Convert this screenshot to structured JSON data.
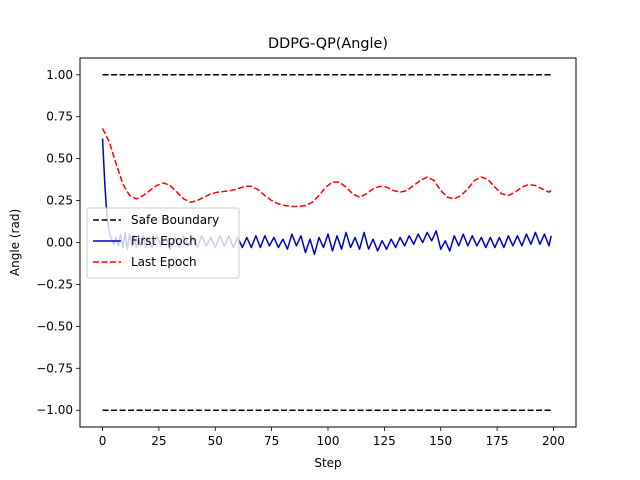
{
  "chart_data": {
    "type": "line",
    "title": "DDPG-QP(Angle)",
    "xlabel": "Step",
    "ylabel": "Angle (rad)",
    "xlim": [
      -10,
      210
    ],
    "ylim": [
      -1.1,
      1.1
    ],
    "xticks": [
      0,
      25,
      50,
      75,
      100,
      125,
      150,
      175,
      200
    ],
    "yticks": [
      -1.0,
      -0.75,
      -0.5,
      -0.25,
      0.0,
      0.25,
      0.5,
      0.75,
      1.0
    ],
    "xtick_labels": [
      "0",
      "25",
      "50",
      "75",
      "100",
      "125",
      "150",
      "175",
      "200"
    ],
    "ytick_labels": [
      "−1.00",
      "−0.75",
      "−0.50",
      "−0.25",
      "0.00",
      "0.25",
      "0.50",
      "0.75",
      "1.00"
    ],
    "legend_position": "center-left",
    "series": [
      {
        "name": "Safe Boundary",
        "color": "#000000",
        "style": "dashed",
        "segments": [
          {
            "x": [
              0,
              199
            ],
            "y": [
              1.0,
              1.0
            ]
          },
          {
            "x": [
              0,
              199
            ],
            "y": [
              -1.0,
              -1.0
            ]
          }
        ]
      },
      {
        "name": "First Epoch",
        "color": "#0000cc",
        "style": "solid",
        "x": [
          0,
          1,
          2,
          3,
          4,
          5,
          6,
          7,
          8,
          9,
          10,
          11,
          12,
          13,
          14,
          15,
          16,
          17,
          18,
          19,
          20,
          22,
          24,
          26,
          28,
          30,
          32,
          34,
          36,
          38,
          40,
          42,
          44,
          46,
          48,
          50,
          52,
          54,
          56,
          58,
          60,
          62,
          64,
          66,
          68,
          70,
          72,
          74,
          76,
          78,
          80,
          82,
          84,
          86,
          88,
          90,
          92,
          94,
          96,
          98,
          100,
          102,
          104,
          106,
          108,
          110,
          112,
          114,
          116,
          118,
          120,
          122,
          124,
          126,
          128,
          130,
          132,
          134,
          136,
          138,
          140,
          142,
          144,
          146,
          148,
          150,
          152,
          154,
          156,
          158,
          160,
          162,
          164,
          166,
          168,
          170,
          172,
          174,
          176,
          178,
          180,
          182,
          184,
          186,
          188,
          190,
          192,
          194,
          196,
          198,
          199
        ],
        "y": [
          0.62,
          0.35,
          0.15,
          0.06,
          0.02,
          -0.01,
          0.03,
          -0.02,
          0.05,
          -0.03,
          0.06,
          -0.04,
          0.05,
          -0.02,
          0.04,
          -0.03,
          0.03,
          -0.02,
          0.04,
          -0.03,
          0.03,
          -0.03,
          0.04,
          -0.02,
          0.03,
          -0.04,
          0.03,
          -0.03,
          0.04,
          -0.02,
          0.03,
          -0.03,
          0.04,
          -0.02,
          0.03,
          -0.03,
          0.04,
          -0.02,
          0.04,
          -0.03,
          0.03,
          -0.03,
          0.03,
          -0.03,
          0.04,
          -0.03,
          0.04,
          -0.02,
          0.03,
          -0.03,
          0.02,
          -0.04,
          0.05,
          -0.02,
          0.04,
          -0.06,
          0.02,
          -0.07,
          0.03,
          -0.03,
          0.05,
          -0.05,
          0.04,
          -0.04,
          0.06,
          -0.03,
          0.03,
          -0.04,
          0.06,
          -0.04,
          0.02,
          -0.05,
          0.01,
          -0.04,
          0.02,
          -0.03,
          0.03,
          -0.02,
          0.04,
          -0.01,
          0.05,
          0.0,
          0.06,
          0.01,
          0.07,
          -0.04,
          0.01,
          -0.05,
          0.04,
          -0.02,
          0.05,
          -0.02,
          0.04,
          -0.02,
          0.03,
          -0.03,
          0.03,
          -0.03,
          0.03,
          -0.03,
          0.04,
          -0.02,
          0.04,
          -0.02,
          0.05,
          -0.01,
          0.06,
          -0.01,
          0.05,
          -0.02,
          0.04
        ]
      },
      {
        "name": "Last Epoch",
        "color": "#ff0000",
        "style": "dashed",
        "x": [
          0,
          3,
          6,
          9,
          12,
          15,
          18,
          21,
          24,
          27,
          30,
          33,
          36,
          39,
          42,
          45,
          48,
          51,
          54,
          57,
          60,
          63,
          66,
          69,
          72,
          75,
          78,
          81,
          84,
          87,
          90,
          93,
          96,
          99,
          102,
          105,
          108,
          111,
          114,
          117,
          120,
          123,
          126,
          129,
          132,
          135,
          138,
          141,
          144,
          147,
          150,
          153,
          156,
          159,
          162,
          165,
          168,
          171,
          174,
          177,
          180,
          183,
          186,
          189,
          192,
          195,
          198,
          199
        ],
        "y": [
          0.68,
          0.6,
          0.47,
          0.35,
          0.28,
          0.26,
          0.28,
          0.31,
          0.34,
          0.355,
          0.34,
          0.3,
          0.26,
          0.24,
          0.25,
          0.27,
          0.29,
          0.3,
          0.305,
          0.31,
          0.32,
          0.335,
          0.335,
          0.315,
          0.28,
          0.25,
          0.23,
          0.22,
          0.215,
          0.215,
          0.22,
          0.24,
          0.28,
          0.33,
          0.36,
          0.36,
          0.33,
          0.29,
          0.27,
          0.29,
          0.32,
          0.335,
          0.33,
          0.31,
          0.3,
          0.31,
          0.34,
          0.37,
          0.39,
          0.37,
          0.31,
          0.27,
          0.26,
          0.28,
          0.32,
          0.37,
          0.39,
          0.375,
          0.33,
          0.29,
          0.28,
          0.3,
          0.33,
          0.345,
          0.34,
          0.32,
          0.3,
          0.31
        ]
      }
    ]
  }
}
